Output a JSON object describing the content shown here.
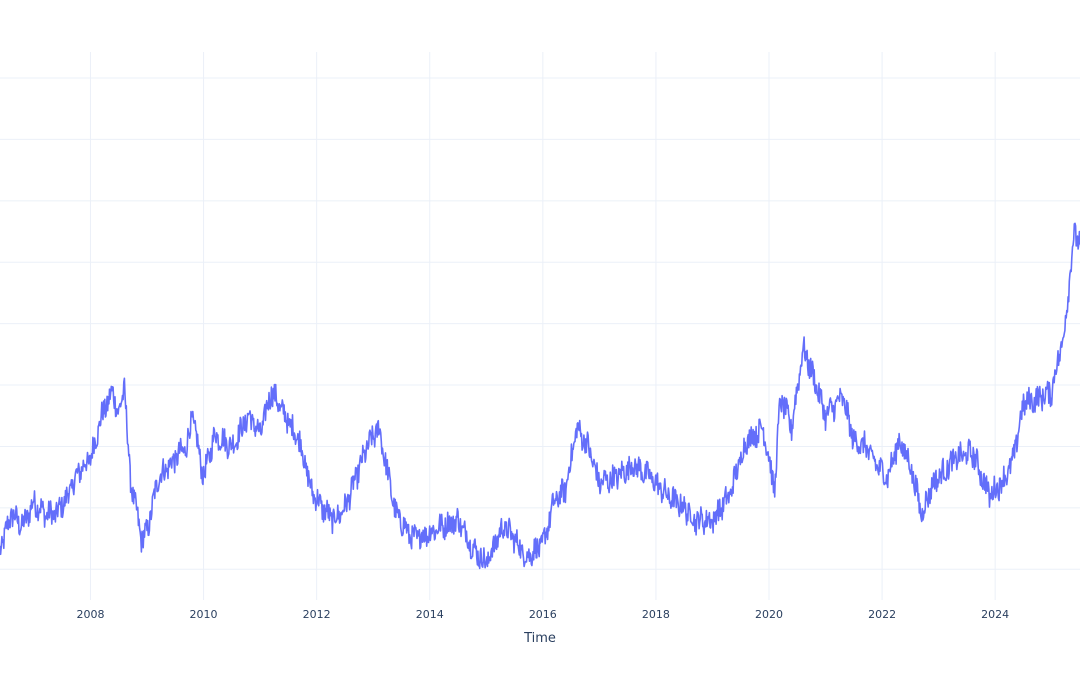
{
  "chart_data": {
    "type": "line",
    "title": "",
    "xlabel": "Time",
    "ylabel": "",
    "xlim": [
      2006.4,
      2025.5
    ],
    "ylim": [
      0.5,
      9.7
    ],
    "x_ticks": [
      2008,
      2010,
      2012,
      2014,
      2016,
      2018,
      2020,
      2022,
      2024
    ],
    "x_tick_labels": [
      "2008",
      "2010",
      "2012",
      "2014",
      "2016",
      "2018",
      "2020",
      "2022",
      "2024"
    ],
    "y_gridlines": [
      1,
      2,
      3,
      4,
      5,
      6,
      7,
      8,
      9
    ],
    "grid": true,
    "legend": "none",
    "series_color": "#636efa",
    "series": [
      {
        "x": [
          2006.4,
          2006.5,
          2006.6,
          2006.8,
          2007.0,
          2007.2,
          2007.4,
          2007.6,
          2007.8,
          2008.0,
          2008.2,
          2008.4,
          2008.5,
          2008.6,
          2008.7,
          2008.9,
          2009.0,
          2009.2,
          2009.5,
          2009.7,
          2009.8,
          2010.0,
          2010.2,
          2010.5,
          2010.8,
          2011.0,
          2011.2,
          2011.5,
          2011.7,
          2011.9,
          2012.1,
          2012.3,
          2012.5,
          2012.9,
          2013.1,
          2013.4,
          2013.7,
          2014.0,
          2014.2,
          2014.5,
          2014.8,
          2015.0,
          2015.3,
          2015.5,
          2015.7,
          2016.0,
          2016.2,
          2016.4,
          2016.6,
          2016.8,
          2017.0,
          2017.3,
          2017.6,
          2017.9,
          2018.2,
          2018.5,
          2018.7,
          2019.0,
          2019.3,
          2019.6,
          2019.9,
          2020.1,
          2020.2,
          2020.4,
          2020.6,
          2020.8,
          2021.0,
          2021.3,
          2021.5,
          2021.7,
          2021.9,
          2022.1,
          2022.3,
          2022.5,
          2022.7,
          2022.9,
          2023.1,
          2023.3,
          2023.6,
          2023.9,
          2024.1,
          2024.3,
          2024.5,
          2024.8,
          2025.0,
          2025.1,
          2025.2,
          2025.3,
          2025.4,
          2025.5
        ],
        "y": [
          1.3,
          1.6,
          1.9,
          1.7,
          2.1,
          1.9,
          1.9,
          2.2,
          2.6,
          2.8,
          3.5,
          3.9,
          3.5,
          4.0,
          2.5,
          1.5,
          1.6,
          2.5,
          2.8,
          3.0,
          3.5,
          2.5,
          3.2,
          3.0,
          3.5,
          3.2,
          3.9,
          3.4,
          3.1,
          2.3,
          2.0,
          1.8,
          2.0,
          3.0,
          3.3,
          1.9,
          1.5,
          1.6,
          1.7,
          1.8,
          1.3,
          1.1,
          1.7,
          1.5,
          1.2,
          1.4,
          2.1,
          2.3,
          3.3,
          3.0,
          2.4,
          2.5,
          2.7,
          2.5,
          2.2,
          2.0,
          1.8,
          1.8,
          2.2,
          3.1,
          3.3,
          2.3,
          3.8,
          3.3,
          4.6,
          4.1,
          3.5,
          3.8,
          3.1,
          3.0,
          2.7,
          2.5,
          3.1,
          2.7,
          1.9,
          2.4,
          2.6,
          2.8,
          2.9,
          2.2,
          2.4,
          2.7,
          3.7,
          3.8,
          3.9,
          4.4,
          4.7,
          5.6,
          6.5,
          6.3
        ]
      }
    ]
  }
}
